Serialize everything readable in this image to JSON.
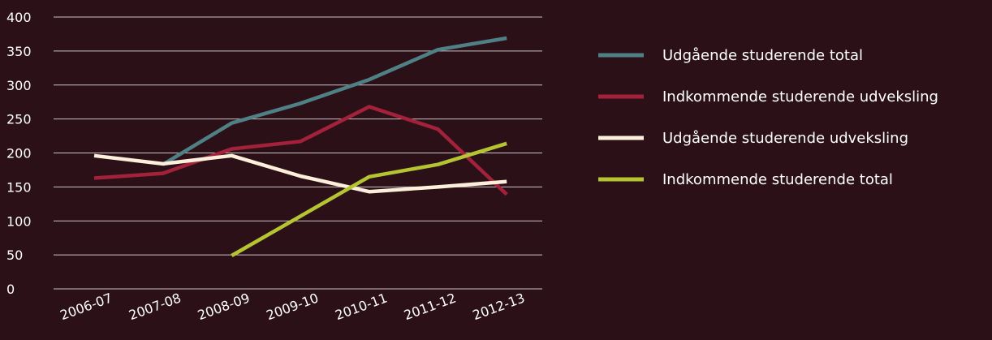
{
  "chart_data": {
    "type": "line",
    "title": "",
    "xlabel": "",
    "ylabel": "",
    "categories": [
      "2006-07",
      "2007-08",
      "2008-09",
      "2009-10",
      "2010-11",
      "2011-12",
      "2012-13"
    ],
    "ylim": [
      0,
      400
    ],
    "yticks": [
      0,
      50,
      100,
      150,
      200,
      250,
      300,
      350,
      400
    ],
    "grid": true,
    "legend_position": "right",
    "series": [
      {
        "name": "Udgående studerende total",
        "color": "#4e8085",
        "values": [
          null,
          183,
          244,
          273,
          308,
          352,
          369
        ]
      },
      {
        "name": "Indkommende studerende udveksling",
        "color": "#a3213a",
        "values": [
          163,
          170,
          206,
          217,
          268,
          235,
          139
        ]
      },
      {
        "name": "Udgående studerende udveksling",
        "color": "#fcefdc",
        "values": [
          196,
          184,
          196,
          166,
          143,
          150,
          158
        ]
      },
      {
        "name": "Indkommende studerende total",
        "color": "#b5c532",
        "values": [
          null,
          null,
          49,
          107,
          165,
          183,
          214
        ]
      }
    ]
  }
}
